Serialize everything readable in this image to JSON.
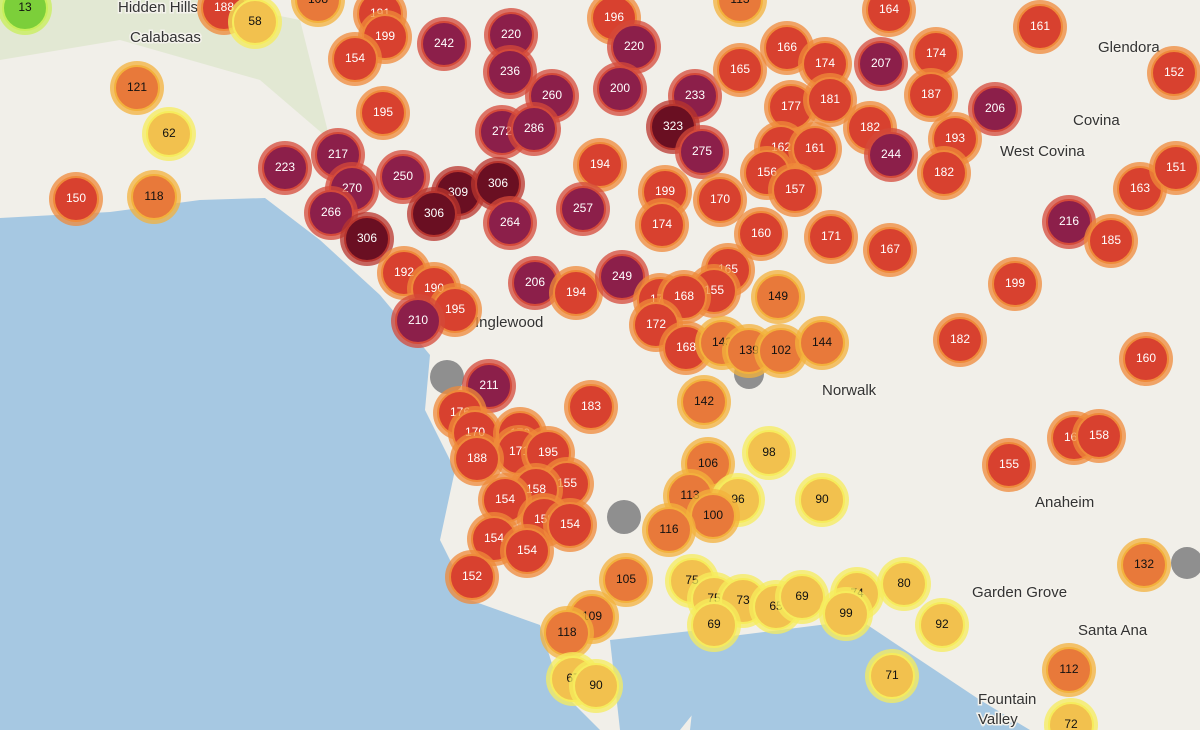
{
  "places": [
    "Hidden Hills",
    "Calabasas",
    "Glendora",
    "Covina",
    "West Covina",
    "Inglewood",
    "Norwalk",
    "Anaheim",
    "Garden Grove",
    "Santa Ana",
    "Fountain Valley"
  ],
  "markers": [
    13,
    188,
    58,
    108,
    191,
    199,
    242,
    220,
    236,
    196,
    220,
    113,
    164,
    161,
    152,
    154,
    121,
    62,
    195,
    260,
    200,
    233,
    323,
    275,
    165,
    166,
    174,
    207,
    174,
    187,
    206,
    177,
    181,
    182,
    193,
    272,
    286,
    244,
    182,
    223,
    217,
    162,
    161,
    156,
    157,
    194,
    199,
    170,
    150,
    118,
    270,
    250,
    309,
    306,
    257,
    266,
    306,
    264,
    174,
    160,
    171,
    167,
    216,
    185,
    163,
    151,
    306,
    192,
    190,
    195,
    206,
    194,
    249,
    165,
    155,
    178,
    168,
    172,
    168,
    143,
    139,
    102,
    144,
    149,
    199,
    182,
    160,
    210,
    211,
    183,
    142,
    176,
    170,
    170,
    171,
    195,
    188,
    155,
    158,
    154,
    159,
    154,
    154,
    154,
    152,
    106,
    98,
    113,
    96,
    100,
    116,
    90,
    164,
    158,
    155,
    132,
    105,
    75,
    75,
    73,
    65,
    69,
    74,
    80,
    99,
    69,
    109,
    118,
    92,
    71,
    112,
    67,
    90,
    72
  ]
}
